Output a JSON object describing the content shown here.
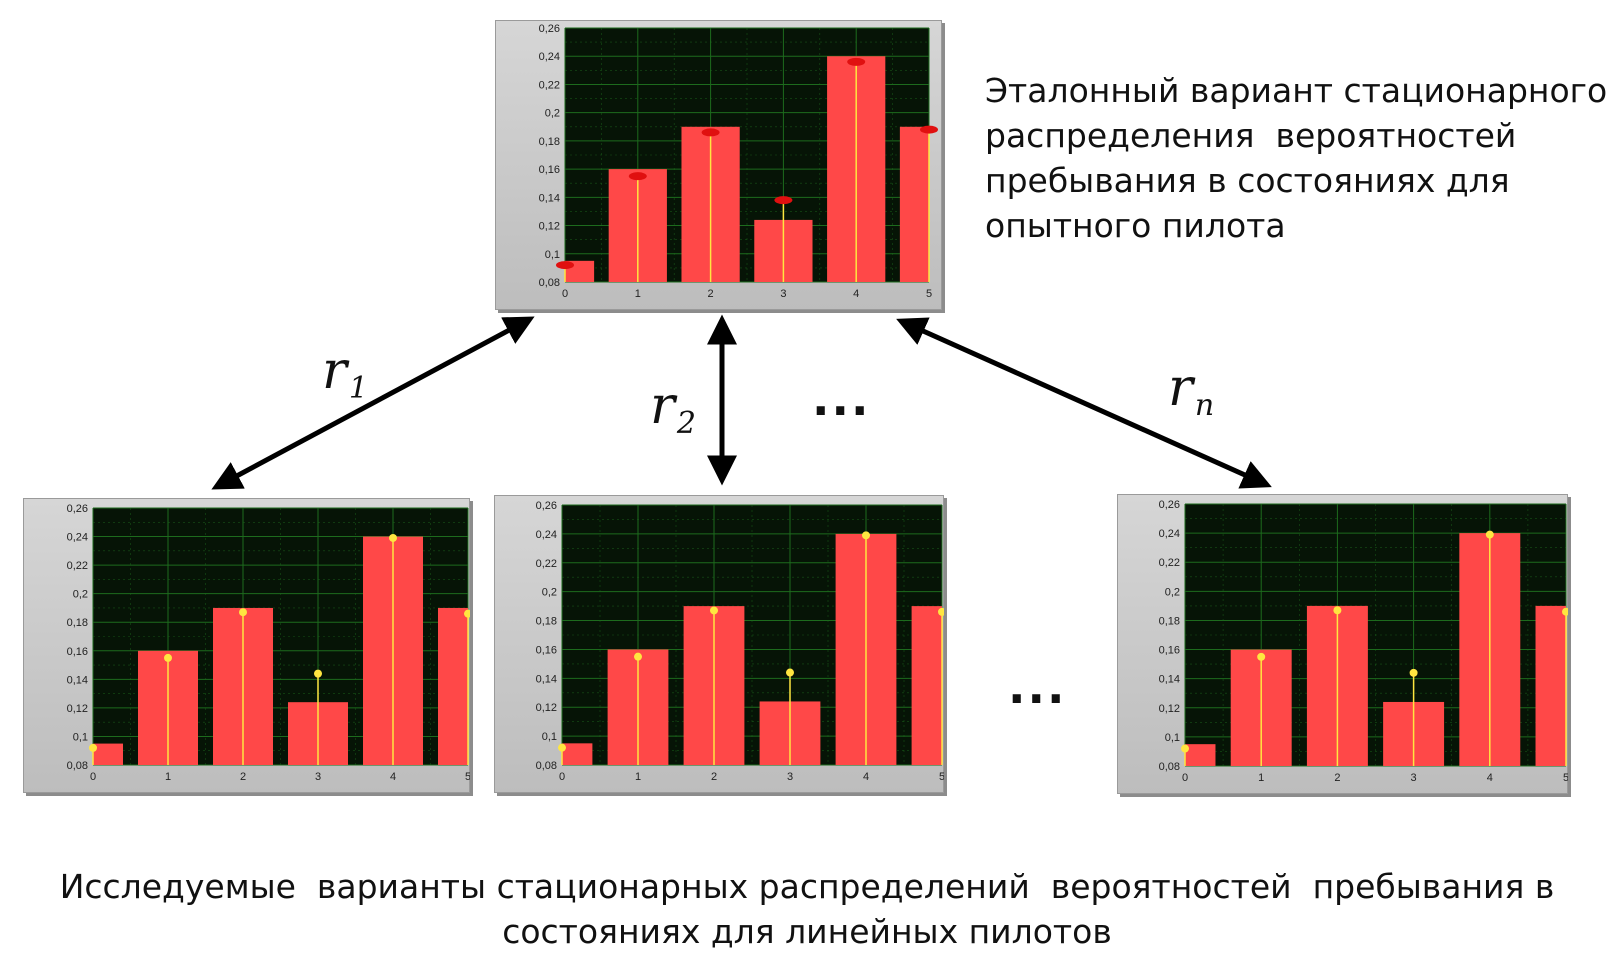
{
  "reference_text": [
    "Эталонный вариант стационарного",
    "распределения  вероятностей",
    "пребывания в состояниях для",
    "опытного пилота"
  ],
  "caption": [
    "Исследуемые  варианты стационарных распределений  вероятностей  пребывания в",
    "состояниях для линейных пилотов"
  ],
  "distance_labels": [
    {
      "symbol": "r",
      "index": "1"
    },
    {
      "symbol": "r",
      "index": "2"
    },
    {
      "symbol": "r",
      "index": "n"
    }
  ],
  "ellipsis": "...",
  "colors": {
    "bar": "#ff4848",
    "plot_bg": "#061406",
    "grid": "#1d6b1d",
    "marker": "#ffe640",
    "ref_marker": "#e01010"
  },
  "chart_data": [
    {
      "type": "bar",
      "id": "reference",
      "categories": [
        "0",
        "1",
        "2",
        "3",
        "4",
        "5"
      ],
      "values": [
        0.095,
        0.16,
        0.19,
        0.124,
        0.24,
        0.19
      ],
      "markers": [
        0.092,
        0.155,
        0.186,
        0.138,
        0.236,
        0.188
      ],
      "yticks": [
        "0,08",
        "0,1",
        "0,12",
        "0,14",
        "0,16",
        "0,18",
        "0,2",
        "0,22",
        "0,24",
        "0,26"
      ],
      "ylim": [
        0.08,
        0.26
      ],
      "grid": true
    },
    {
      "type": "bar",
      "id": "tested-1",
      "categories": [
        "0",
        "1",
        "2",
        "3",
        "4",
        "5"
      ],
      "values": [
        0.095,
        0.16,
        0.19,
        0.124,
        0.24,
        0.19
      ],
      "markers": [
        0.092,
        0.155,
        0.187,
        0.144,
        0.239,
        0.186
      ],
      "yticks": [
        "0,08",
        "0,1",
        "0,12",
        "0,14",
        "0,16",
        "0,18",
        "0,2",
        "0,22",
        "0,24",
        "0,26"
      ],
      "ylim": [
        0.08,
        0.26
      ],
      "grid": true
    },
    {
      "type": "bar",
      "id": "tested-2",
      "categories": [
        "0",
        "1",
        "2",
        "3",
        "4",
        "5"
      ],
      "values": [
        0.095,
        0.16,
        0.19,
        0.124,
        0.24,
        0.19
      ],
      "markers": [
        0.092,
        0.155,
        0.187,
        0.144,
        0.239,
        0.186
      ],
      "yticks": [
        "0,08",
        "0,1",
        "0,12",
        "0,14",
        "0,16",
        "0,18",
        "0,2",
        "0,22",
        "0,24",
        "0,26"
      ],
      "ylim": [
        0.08,
        0.26
      ],
      "grid": true
    },
    {
      "type": "bar",
      "id": "tested-n",
      "categories": [
        "0",
        "1",
        "2",
        "3",
        "4",
        "5"
      ],
      "values": [
        0.095,
        0.16,
        0.19,
        0.124,
        0.24,
        0.19
      ],
      "markers": [
        0.092,
        0.155,
        0.187,
        0.144,
        0.239,
        0.186
      ],
      "yticks": [
        "0,08",
        "0,1",
        "0,12",
        "0,14",
        "0,16",
        "0,18",
        "0,2",
        "0,22",
        "0,24",
        "0,26"
      ],
      "ylim": [
        0.08,
        0.26
      ],
      "grid": true
    }
  ]
}
